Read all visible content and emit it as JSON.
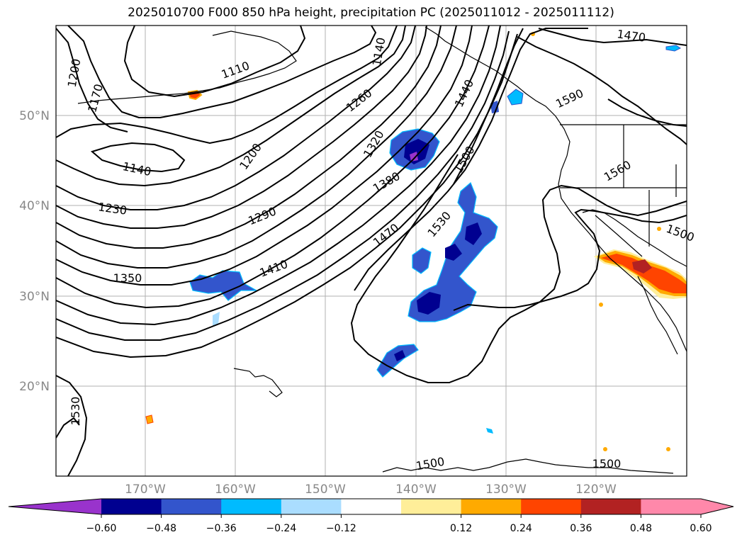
{
  "title": "2025010700 F000 850 hPa height, precipitation PC (2025011012 - 2025011112)",
  "map": {
    "lat_labels": [
      "50°N",
      "40°N",
      "30°N",
      "20°N"
    ],
    "lon_labels": [
      "170°W",
      "160°W",
      "150°W",
      "140°W",
      "130°W",
      "120°W"
    ],
    "contour_labels": [
      "1200",
      "1170",
      "1110",
      "1140",
      "1230",
      "1200",
      "1260",
      "1290",
      "1320",
      "1350",
      "1380",
      "1410",
      "1440",
      "1470",
      "1500",
      "1530",
      "1560",
      "1590",
      "1470",
      "1500",
      "1530",
      "1500",
      "1500",
      "1560",
      "1140"
    ]
  },
  "colorbar": {
    "ticks": [
      "−0.60",
      "−0.48",
      "−0.36",
      "−0.24",
      "−0.12",
      "0.12",
      "0.24",
      "0.36",
      "0.48",
      "0.60"
    ],
    "colors": {
      "under": "#9933cc",
      "bins": [
        "#000090",
        "#3355cc",
        "#00bbff",
        "#aaddff",
        "#ffffff",
        "#ffee99",
        "#ffaa00",
        "#ff4400",
        "#b22222",
        "#ff88aa"
      ],
      "over": "#ff88aa"
    },
    "neg_colors": [
      "#9933cc",
      "#000090",
      "#3355cc",
      "#00bbff",
      "#aaddff"
    ],
    "pos_colors": [
      "#ffee99",
      "#ffaa00",
      "#ff4400",
      "#b22222"
    ]
  }
}
